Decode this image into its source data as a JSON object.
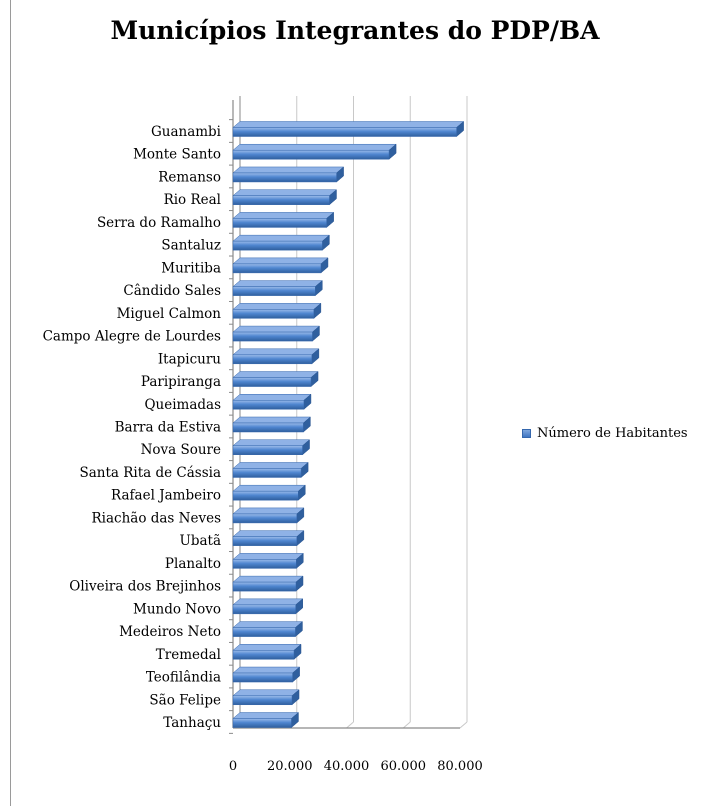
{
  "chart_data": {
    "type": "bar",
    "orientation": "horizontal",
    "title": "Municípios Integrantes do PDP/BA",
    "categories": [
      "Guanambi",
      "Monte Santo",
      "Remanso",
      "Rio Real",
      "Serra do Ramalho",
      "Santaluz",
      "Muritiba",
      "Cândido Sales",
      "Miguel Calmon",
      "Campo Alegre de Lourdes",
      "Itapicuru",
      "Paripiranga",
      "Queimadas",
      "Barra da Estiva",
      "Nova Soure",
      "Santa Rita de Cássia",
      "Rafael Jambeiro",
      "Riachão das Neves",
      "Ubatã",
      "Planalto",
      "Oliveira dos Brejinhos",
      "Mundo Novo",
      "Medeiros Neto",
      "Tremedal",
      "Teofilândia",
      "São Felipe",
      "Tanhaçu"
    ],
    "series": [
      {
        "name": "Número de Habitantes",
        "values": [
          78800,
          55000,
          36500,
          34000,
          33000,
          31500,
          31000,
          29000,
          28500,
          28000,
          27800,
          27500,
          25000,
          24800,
          24500,
          24000,
          23000,
          22500,
          22500,
          22300,
          22200,
          22100,
          22000,
          21500,
          21000,
          20800,
          20600
        ]
      }
    ],
    "xlim": [
      0,
      80000
    ],
    "xticks": [
      "0",
      "20.000",
      "40.000",
      "60.000",
      "80.000"
    ],
    "xlabel": "",
    "ylabel": "",
    "legend_position": "right",
    "grid": true,
    "colors": {
      "bar_top": "#9cbcea",
      "bar_mid": "#4f86d0",
      "bar_bottom": "#2f5f9e",
      "grid": "#c8c8c8",
      "axis": "#8a8a8a"
    }
  }
}
